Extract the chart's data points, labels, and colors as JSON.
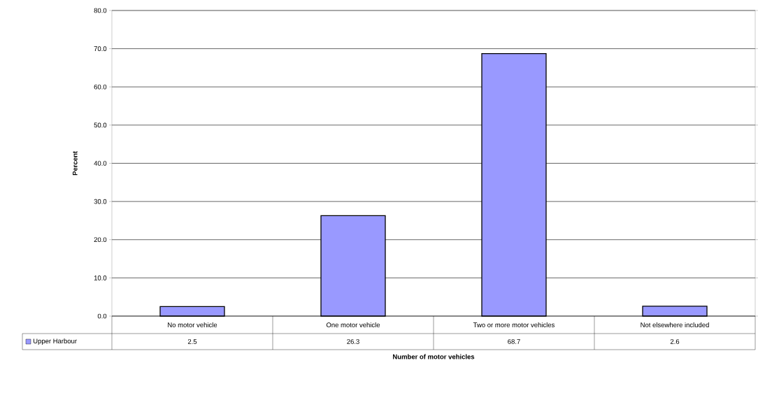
{
  "chart_data": {
    "type": "bar",
    "xlabel": "Number of motor vehicles",
    "ylabel": "Percent",
    "categories": [
      "No motor vehicle",
      "One motor vehicle",
      "Two or more motor vehicles",
      "Not elsewhere included"
    ],
    "series": [
      {
        "name": "Upper Harbour",
        "color": "#9999ff",
        "values": [
          2.5,
          26.3,
          68.7,
          2.6
        ]
      }
    ],
    "ylim": [
      0,
      80
    ],
    "yticks": [
      {
        "value": 0,
        "label": "0.0"
      },
      {
        "value": 10,
        "label": "10.0"
      },
      {
        "value": 20,
        "label": "20.0"
      },
      {
        "value": 30,
        "label": "30.0"
      },
      {
        "value": 40,
        "label": "40.0"
      },
      {
        "value": 50,
        "label": "50.0"
      },
      {
        "value": 60,
        "label": "60.0"
      },
      {
        "value": 70,
        "label": "70.0"
      },
      {
        "value": 80,
        "label": "80.0"
      }
    ],
    "grid": "y",
    "legend": "bottom",
    "data_labels": true
  }
}
